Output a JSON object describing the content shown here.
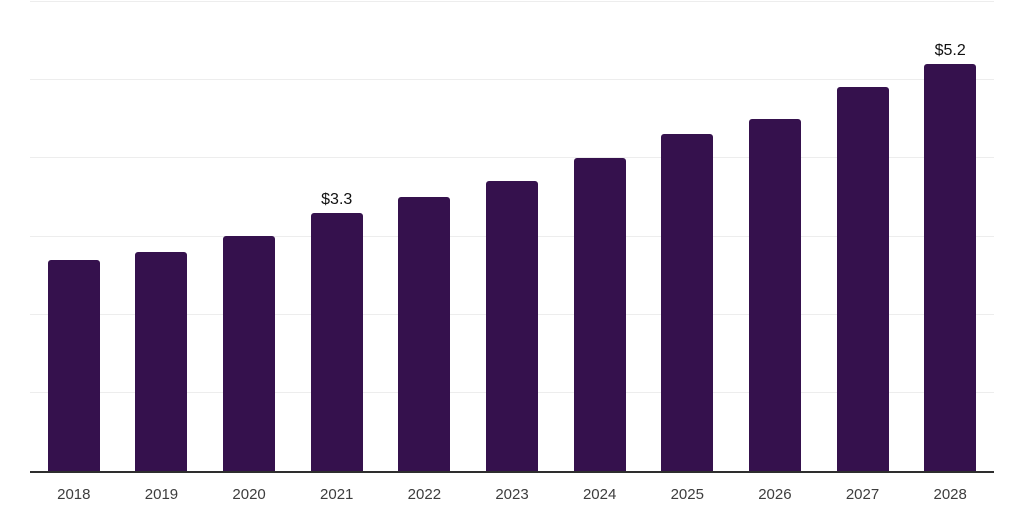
{
  "chart_data": {
    "type": "bar",
    "title": "",
    "xlabel": "",
    "ylabel": "",
    "categories": [
      "2018",
      "2019",
      "2020",
      "2021",
      "2022",
      "2023",
      "2024",
      "2025",
      "2026",
      "2027",
      "2028"
    ],
    "values": [
      2.7,
      2.8,
      3.0,
      3.3,
      3.5,
      3.7,
      4.0,
      4.3,
      4.5,
      4.9,
      5.2
    ],
    "data_labels": {
      "2021": "$3.3",
      "2028": "$5.2"
    },
    "ylim": [
      0,
      6
    ],
    "grid": "horizontal",
    "gridline_step": 1,
    "legend": "none",
    "colors": {
      "bar": "#35114D",
      "axis_line": "#2e2e2e",
      "gridline": "#ededed",
      "tick_label": "#3d3d3d",
      "data_label": "#111111",
      "background": "#ffffff"
    }
  }
}
